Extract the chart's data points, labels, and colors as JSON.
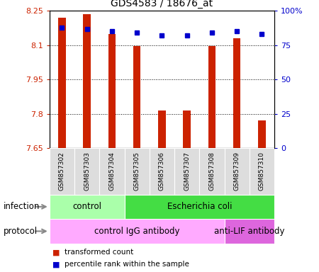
{
  "title": "GDS4583 / 18676_at",
  "samples": [
    "GSM857302",
    "GSM857303",
    "GSM857304",
    "GSM857305",
    "GSM857306",
    "GSM857307",
    "GSM857308",
    "GSM857309",
    "GSM857310"
  ],
  "bar_values": [
    8.22,
    8.235,
    8.15,
    8.095,
    7.815,
    7.815,
    8.095,
    8.13,
    7.77
  ],
  "blue_values": [
    88,
    87,
    85,
    84,
    82,
    82,
    84,
    85,
    83
  ],
  "y_min": 7.65,
  "y_max": 8.25,
  "y_ticks": [
    7.65,
    7.8,
    7.95,
    8.1,
    8.25
  ],
  "y_tick_labels": [
    "7.65",
    "7.8",
    "7.95",
    "8.1",
    "8.25"
  ],
  "y2_ticks": [
    0,
    25,
    50,
    75,
    100
  ],
  "y2_tick_labels": [
    "0",
    "25",
    "50",
    "75",
    "100%"
  ],
  "bar_color": "#cc2200",
  "blue_color": "#0000cc",
  "infection_groups": [
    {
      "label": "control",
      "start": 0,
      "end": 3,
      "color": "#aaffaa"
    },
    {
      "label": "Escherichia coli",
      "start": 3,
      "end": 9,
      "color": "#44dd44"
    }
  ],
  "protocol_groups": [
    {
      "label": "control IgG antibody",
      "start": 0,
      "end": 7,
      "color": "#ffaaff"
    },
    {
      "label": "anti-LIF antibody",
      "start": 7,
      "end": 9,
      "color": "#dd66dd"
    }
  ],
  "legend_red": "transformed count",
  "legend_blue": "percentile rank within the sample",
  "xlabel_infection": "infection",
  "xlabel_protocol": "protocol"
}
